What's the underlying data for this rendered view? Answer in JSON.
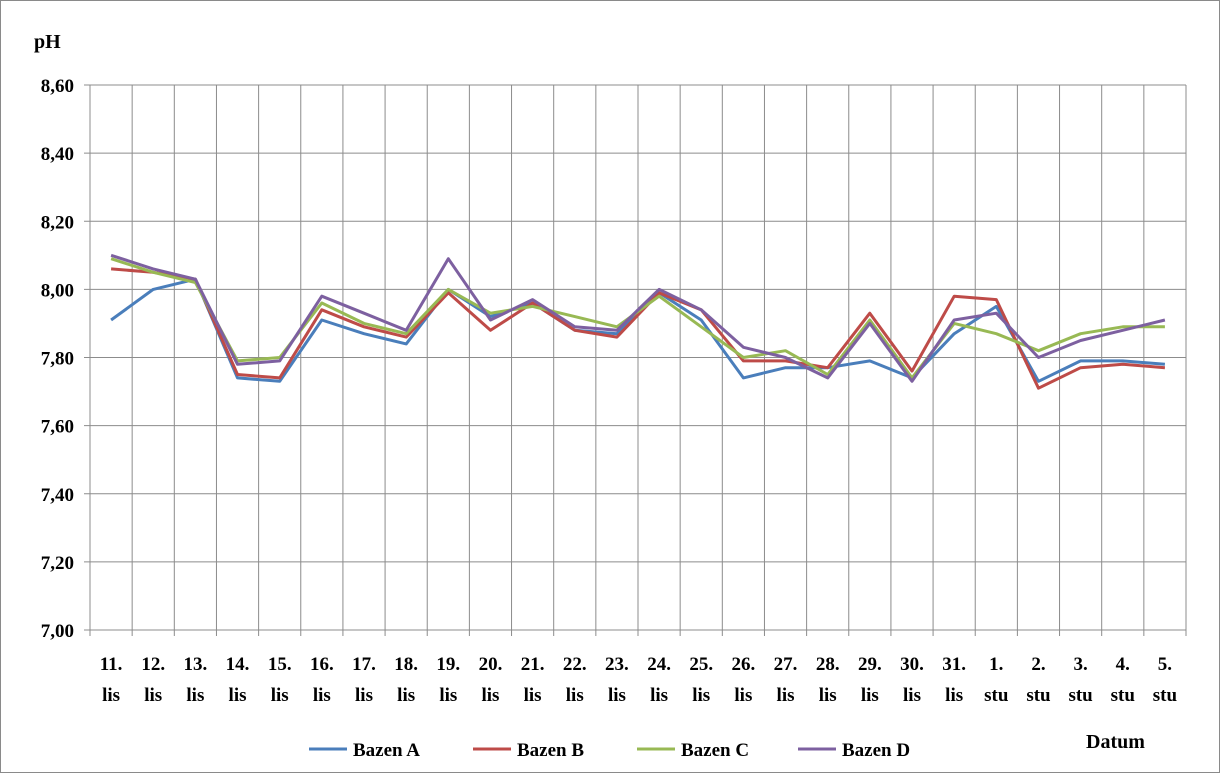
{
  "chart_data": {
    "type": "line",
    "ylabel": "pH",
    "xlabel": "Datum",
    "ylim": [
      7.0,
      8.6
    ],
    "y_ticks": [
      "7,00",
      "7,20",
      "7,40",
      "7,60",
      "7,80",
      "8,00",
      "8,20",
      "8,40",
      "8,60"
    ],
    "grid": true,
    "legend_position": "bottom",
    "categories": [
      [
        "11.",
        "lis"
      ],
      [
        "12.",
        "lis"
      ],
      [
        "13.",
        "lis"
      ],
      [
        "14.",
        "lis"
      ],
      [
        "15.",
        "lis"
      ],
      [
        "16.",
        "lis"
      ],
      [
        "17.",
        "lis"
      ],
      [
        "18.",
        "lis"
      ],
      [
        "19.",
        "lis"
      ],
      [
        "20.",
        "lis"
      ],
      [
        "21.",
        "lis"
      ],
      [
        "22.",
        "lis"
      ],
      [
        "23.",
        "lis"
      ],
      [
        "24.",
        "lis"
      ],
      [
        "25.",
        "lis"
      ],
      [
        "26.",
        "lis"
      ],
      [
        "27.",
        "lis"
      ],
      [
        "28.",
        "lis"
      ],
      [
        "29.",
        "lis"
      ],
      [
        "30.",
        "lis"
      ],
      [
        "31.",
        "lis"
      ],
      [
        "1.",
        "stu"
      ],
      [
        "2.",
        "stu"
      ],
      [
        "3.",
        "stu"
      ],
      [
        "4.",
        "stu"
      ],
      [
        "5.",
        "stu"
      ]
    ],
    "series": [
      {
        "name": "Bazen A",
        "color": "#4a7ebb",
        "values": [
          7.91,
          8.0,
          8.03,
          7.74,
          7.73,
          7.91,
          7.87,
          7.84,
          8.0,
          7.92,
          7.96,
          7.88,
          7.87,
          7.99,
          7.91,
          7.74,
          7.77,
          7.77,
          7.79,
          7.74,
          7.87,
          7.95,
          7.73,
          7.79,
          7.79,
          7.78
        ]
      },
      {
        "name": "Bazen B",
        "color": "#be4b48",
        "values": [
          8.06,
          8.05,
          8.03,
          7.75,
          7.74,
          7.94,
          7.89,
          7.86,
          7.99,
          7.88,
          7.96,
          7.88,
          7.86,
          7.99,
          7.94,
          7.79,
          7.79,
          7.77,
          7.93,
          7.76,
          7.98,
          7.97,
          7.71,
          7.77,
          7.78,
          7.77
        ]
      },
      {
        "name": "Bazen C",
        "color": "#98b954",
        "values": [
          8.09,
          8.05,
          8.02,
          7.79,
          7.8,
          7.96,
          7.9,
          7.87,
          8.0,
          7.93,
          7.95,
          7.92,
          7.89,
          7.98,
          7.89,
          7.8,
          7.82,
          7.75,
          7.91,
          7.74,
          7.9,
          7.87,
          7.82,
          7.87,
          7.89,
          7.89
        ]
      },
      {
        "name": "Bazen D",
        "color": "#7d60a0",
        "values": [
          8.1,
          8.06,
          8.03,
          7.78,
          7.79,
          7.98,
          7.93,
          7.88,
          8.09,
          7.91,
          7.97,
          7.89,
          7.88,
          8.0,
          7.94,
          7.83,
          7.8,
          7.74,
          7.9,
          7.73,
          7.91,
          7.93,
          7.8,
          7.85,
          7.88,
          7.91
        ]
      }
    ]
  }
}
